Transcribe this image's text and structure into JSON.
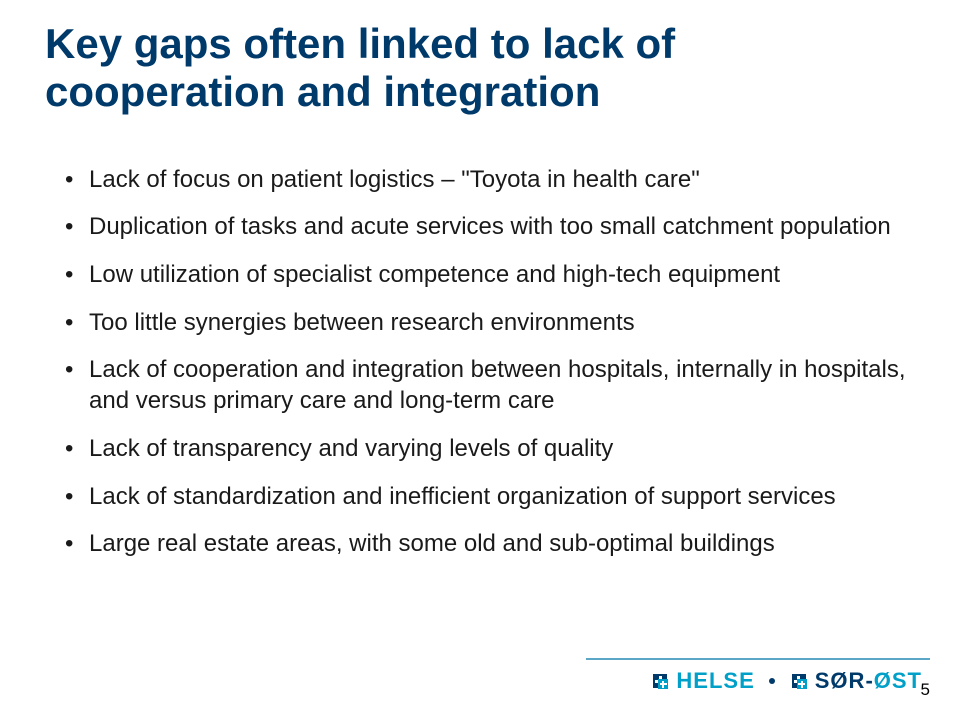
{
  "title_color": "#003a6a",
  "body_color": "#1a1a1a",
  "title": "Key gaps often linked to lack of cooperation and integration",
  "bullets": [
    "Lack of focus on patient logistics – \"Toyota in health care\"",
    "Duplication of tasks and acute services with too small catchment population",
    "Low utilization of specialist competence and high-tech equipment",
    "Too little synergies between research environments",
    "Lack of cooperation and integration between hospitals, internally in hospitals, and versus primary care and long-term care",
    "Lack of transparency and varying levels of quality",
    "Lack of standardization and inefficient organization of support services",
    "Large real estate areas, with some old and sub-optimal buildings"
  ],
  "logo": {
    "helse": "HELSE",
    "sor": "SØR",
    "ost": "ØST",
    "helse_color": "#00a0c8",
    "sor_color": "#003a6a",
    "ost_color": "#00a0c8"
  },
  "page_number": "5"
}
